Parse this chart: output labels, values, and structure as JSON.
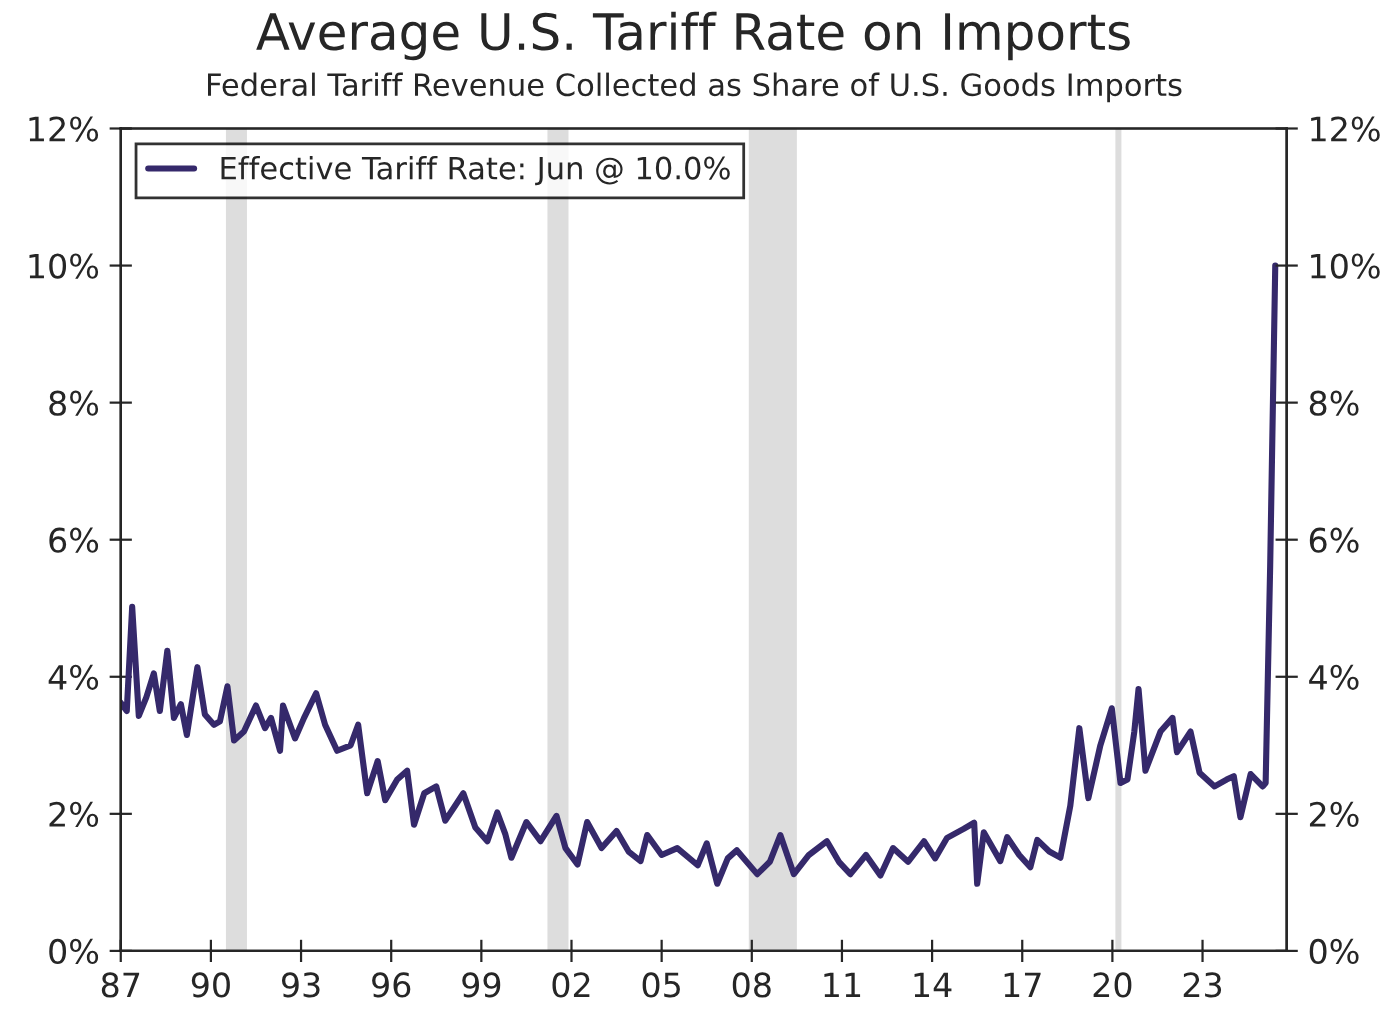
{
  "chart_data": {
    "type": "line",
    "title": "Average U.S. Tariff Rate on Imports",
    "subtitle": "Federal Tariff Revenue Collected as Share of U.S. Goods Imports",
    "x": [
      1987.0,
      1987.2,
      1987.38,
      1987.6,
      1987.85,
      1988.1,
      1988.3,
      1988.55,
      1988.77,
      1989.0,
      1989.2,
      1989.55,
      1989.8,
      1990.1,
      1990.3,
      1990.55,
      1990.77,
      1991.1,
      1991.5,
      1991.8,
      1992.0,
      1992.3,
      1992.4,
      1992.8,
      1993.1,
      1993.5,
      1993.8,
      1994.2,
      1994.65,
      1994.9,
      1995.2,
      1995.55,
      1995.8,
      1996.2,
      1996.53,
      1996.76,
      1997.1,
      1997.5,
      1997.8,
      1998.1,
      1998.4,
      1998.8,
      1999.2,
      1999.53,
      1999.8,
      2000.0,
      2000.5,
      2000.97,
      2001.5,
      2001.8,
      2002.2,
      2002.52,
      2003.0,
      2003.5,
      2003.9,
      2004.3,
      2004.52,
      2005.0,
      2005.52,
      2006.2,
      2006.5,
      2006.85,
      2007.2,
      2007.5,
      2008.18,
      2008.6,
      2008.95,
      2009.4,
      2009.9,
      2010.5,
      2010.9,
      2011.28,
      2011.8,
      2012.28,
      2012.7,
      2013.2,
      2013.73,
      2014.1,
      2014.5,
      2015.05,
      2015.4,
      2015.5,
      2015.72,
      2016.27,
      2016.5,
      2016.9,
      2017.27,
      2017.5,
      2017.9,
      2018.27,
      2018.6,
      2018.9,
      2019.2,
      2019.6,
      2019.98,
      2020.27,
      2020.5,
      2020.73,
      2020.87,
      2021.1,
      2021.6,
      2022.0,
      2022.15,
      2022.6,
      2022.9,
      2023.4,
      2023.8,
      2024.04,
      2024.26,
      2024.6,
      2025.0,
      2025.1,
      2025.25,
      2025.42
    ],
    "series": [
      {
        "name": "Effective Tariff Rate: Jun @ 10.0%",
        "color": "#35296b",
        "values": [
          3.62,
          3.5,
          5.02,
          3.43,
          3.7,
          4.05,
          3.5,
          4.38,
          3.4,
          3.6,
          3.15,
          4.14,
          3.45,
          3.3,
          3.35,
          3.86,
          3.07,
          3.2,
          3.58,
          3.25,
          3.4,
          2.92,
          3.58,
          3.1,
          3.4,
          3.76,
          3.3,
          2.92,
          3.0,
          3.3,
          2.3,
          2.77,
          2.2,
          2.5,
          2.63,
          1.84,
          2.3,
          2.4,
          1.9,
          2.1,
          2.3,
          1.8,
          1.6,
          2.02,
          1.7,
          1.36,
          1.88,
          1.6,
          1.97,
          1.5,
          1.26,
          1.88,
          1.5,
          1.75,
          1.45,
          1.31,
          1.69,
          1.4,
          1.5,
          1.25,
          1.57,
          0.98,
          1.35,
          1.47,
          1.12,
          1.3,
          1.69,
          1.12,
          1.4,
          1.6,
          1.3,
          1.12,
          1.4,
          1.1,
          1.5,
          1.3,
          1.6,
          1.35,
          1.65,
          1.78,
          1.87,
          0.98,
          1.73,
          1.31,
          1.66,
          1.4,
          1.22,
          1.62,
          1.45,
          1.36,
          2.12,
          3.25,
          2.23,
          3.0,
          3.54,
          2.45,
          2.5,
          3.2,
          3.82,
          2.63,
          3.2,
          3.4,
          2.9,
          3.2,
          2.6,
          2.4,
          2.5,
          2.55,
          1.95,
          2.58,
          2.4,
          2.45,
          5.6,
          10.0
        ]
      }
    ],
    "xlim": [
      1987,
      2025.8
    ],
    "xticks": [
      {
        "value": 1987,
        "label": "87"
      },
      {
        "value": 1990,
        "label": "90"
      },
      {
        "value": 1993,
        "label": "93"
      },
      {
        "value": 1996,
        "label": "96"
      },
      {
        "value": 1999,
        "label": "99"
      },
      {
        "value": 2002,
        "label": "02"
      },
      {
        "value": 2005,
        "label": "05"
      },
      {
        "value": 2008,
        "label": "08"
      },
      {
        "value": 2011,
        "label": "11"
      },
      {
        "value": 2014,
        "label": "14"
      },
      {
        "value": 2017,
        "label": "17"
      },
      {
        "value": 2020,
        "label": "20"
      },
      {
        "value": 2023,
        "label": "23"
      }
    ],
    "ylim": [
      0,
      12
    ],
    "yticks": [
      {
        "value": 0,
        "label": "0%"
      },
      {
        "value": 2,
        "label": "2%"
      },
      {
        "value": 4,
        "label": "4%"
      },
      {
        "value": 6,
        "label": "6%"
      },
      {
        "value": 8,
        "label": "8%"
      },
      {
        "value": 10,
        "label": "10%"
      },
      {
        "value": 12,
        "label": "12%"
      }
    ],
    "y2lim": [
      0,
      12
    ],
    "y2ticks": [
      {
        "value": 0,
        "label": "0%"
      },
      {
        "value": 2,
        "label": "2%"
      },
      {
        "value": 4,
        "label": "4%"
      },
      {
        "value": 6,
        "label": "6%"
      },
      {
        "value": 8,
        "label": "8%"
      },
      {
        "value": 10,
        "label": "10%"
      },
      {
        "value": 12,
        "label": "12%"
      }
    ],
    "bands": [
      {
        "axis": "x",
        "from": 1990.5,
        "to": 1991.2,
        "color": "#dddddd"
      },
      {
        "axis": "x",
        "from": 2001.2,
        "to": 2001.9,
        "color": "#dddddd"
      },
      {
        "axis": "x",
        "from": 2007.9,
        "to": 2009.5,
        "color": "#dddddd"
      },
      {
        "axis": "x",
        "from": 2020.1,
        "to": 2020.3,
        "color": "#dddddd"
      }
    ],
    "grid": false,
    "legend": "top left",
    "marker": "none",
    "line_style": "solid"
  }
}
